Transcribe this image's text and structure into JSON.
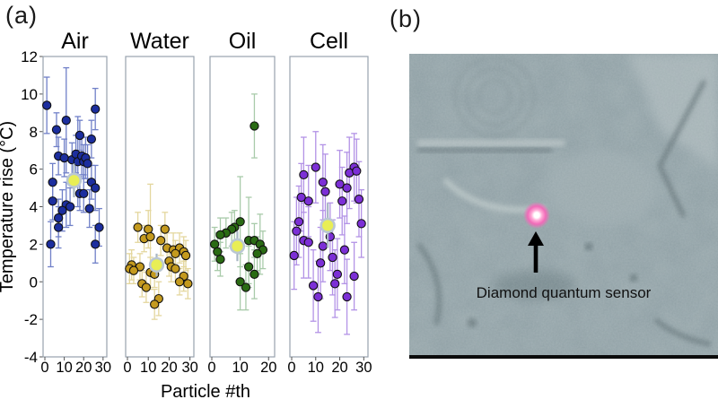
{
  "figure": {
    "panel_a_label": "(a)",
    "panel_b_label": "(b)"
  },
  "chart_data": {
    "type": "scatter",
    "title": "",
    "xlabel": "Particle #th",
    "ylabel": "Temperature rise (°C)",
    "ylim": [
      -4,
      12
    ],
    "yticks": [
      12,
      10,
      8,
      6,
      4,
      2,
      0,
      -2,
      -4
    ],
    "grid": false,
    "legend": "none",
    "box_color": "#98a2ae",
    "mean_marker": {
      "fill": "#e8ee55",
      "ring": "#bac7d3",
      "bar": "#a8b6c4"
    },
    "panels": [
      {
        "title": "Air",
        "xticks": [
          0,
          10,
          20,
          30
        ],
        "xmax": 31,
        "point_color": "#1c2e9e",
        "error_color": "#7080c8",
        "mean": [
          15,
          5.4,
          0.9
        ],
        "points": [
          [
            1,
            9.4,
            1.5
          ],
          [
            6,
            8.1,
            0.9
          ],
          [
            11,
            8.6,
            2.8
          ],
          [
            26,
            9.2,
            1.1
          ],
          [
            18,
            7.8,
            0.8
          ],
          [
            24,
            7.6,
            1.0
          ],
          [
            7,
            6.7,
            1.0
          ],
          [
            10,
            6.6,
            1.0
          ],
          [
            14,
            6.5,
            0.9
          ],
          [
            16,
            6.8,
            1.0
          ],
          [
            17,
            6.4,
            2.4
          ],
          [
            19,
            6.7,
            1.0
          ],
          [
            20,
            6.4,
            0.9
          ],
          [
            21,
            6.6,
            1.1
          ],
          [
            22,
            6.3,
            1.0
          ],
          [
            4,
            5.3,
            1.0
          ],
          [
            24,
            5.3,
            0.9
          ],
          [
            26,
            5.0,
            1.2
          ],
          [
            18,
            4.7,
            0.9
          ],
          [
            20,
            4.7,
            1.0
          ],
          [
            4,
            4.3,
            1.0
          ],
          [
            11,
            4.1,
            1.2
          ],
          [
            13,
            4.0,
            1.0
          ],
          [
            23,
            3.9,
            1.0
          ],
          [
            9,
            3.8,
            1.1
          ],
          [
            7,
            3.4,
            1.0
          ],
          [
            7,
            2.9,
            1.1
          ],
          [
            28,
            2.9,
            1.0
          ],
          [
            3,
            2.0,
            1.2
          ],
          [
            26,
            2.0,
            1.0
          ]
        ]
      },
      {
        "title": "Water",
        "xticks": [
          0,
          10,
          20,
          30
        ],
        "xmax": 31,
        "point_color": "#c49a1e",
        "error_color": "#e4d79e",
        "mean": [
          14,
          0.9,
          0.6
        ],
        "points": [
          [
            5,
            2.9,
            0.8
          ],
          [
            10,
            2.8,
            1.0
          ],
          [
            18,
            2.8,
            0.9
          ],
          [
            8,
            2.3,
            0.7
          ],
          [
            16,
            2.2,
            0.8
          ],
          [
            11,
            2.4,
            2.8
          ],
          [
            19,
            1.8,
            0.8
          ],
          [
            22,
            1.7,
            0.9
          ],
          [
            25,
            1.8,
            0.8
          ],
          [
            27,
            1.6,
            0.8
          ],
          [
            23,
            1.5,
            0.7
          ],
          [
            28,
            1.4,
            0.8
          ],
          [
            20,
            1.1,
            0.8
          ],
          [
            2,
            0.9,
            0.8
          ],
          [
            6,
            0.8,
            0.7
          ],
          [
            1,
            0.7,
            0.8
          ],
          [
            3,
            0.6,
            0.7
          ],
          [
            11,
            0.5,
            0.8
          ],
          [
            13,
            0.4,
            0.7
          ],
          [
            21,
            0.8,
            0.8
          ],
          [
            23,
            0.7,
            0.7
          ],
          [
            27,
            0.3,
            0.8
          ],
          [
            25,
            0.0,
            0.7
          ],
          [
            29,
            -0.1,
            0.8
          ],
          [
            7,
            -0.1,
            0.7
          ],
          [
            9,
            -0.3,
            0.8
          ],
          [
            15,
            -0.9,
            0.9
          ],
          [
            13,
            -1.2,
            0.8
          ]
        ]
      },
      {
        "title": "Oil",
        "xticks": [
          0,
          10,
          20
        ],
        "xmax": 21.5,
        "point_color": "#2a6b14",
        "error_color": "#a9cbaa",
        "mean": [
          9,
          1.9,
          0.8
        ],
        "points": [
          [
            15,
            8.3,
            1.7
          ],
          [
            10,
            3.2,
            2.4
          ],
          [
            8,
            2.9,
            0.9
          ],
          [
            7,
            2.8,
            0.9
          ],
          [
            5,
            2.6,
            0.8
          ],
          [
            3,
            2.5,
            0.9
          ],
          [
            1,
            2.0,
            0.9
          ],
          [
            2,
            1.6,
            1.0
          ],
          [
            3,
            1.2,
            0.9
          ],
          [
            13,
            2.2,
            2.3
          ],
          [
            15,
            2.2,
            0.9
          ],
          [
            17,
            2.0,
            1.6
          ],
          [
            18,
            1.7,
            1.0
          ],
          [
            16,
            1.5,
            0.9
          ],
          [
            13,
            0.8,
            1.1
          ],
          [
            15,
            0.4,
            1.3
          ],
          [
            10,
            0.0,
            1.5
          ],
          [
            12,
            -0.3,
            1.2
          ]
        ]
      },
      {
        "title": "Cell",
        "xticks": [
          0,
          10,
          20,
          30
        ],
        "xmax": 31,
        "point_color": "#7c2fd6",
        "error_color": "#b393e6",
        "mean": [
          15,
          3.0,
          1.2
        ],
        "points": [
          [
            10,
            6.1,
            1.9
          ],
          [
            5,
            5.7,
            2.0
          ],
          [
            26,
            6.1,
            1.8
          ],
          [
            24,
            5.8,
            1.9
          ],
          [
            27,
            5.9,
            1.7
          ],
          [
            13,
            5.3,
            2.0
          ],
          [
            20,
            5.2,
            1.8
          ],
          [
            23,
            5.0,
            1.9
          ],
          [
            14,
            4.8,
            2.0
          ],
          [
            4,
            4.5,
            1.8
          ],
          [
            7,
            4.3,
            1.9
          ],
          [
            21,
            4.3,
            1.8
          ],
          [
            28,
            4.4,
            2.0
          ],
          [
            3,
            3.2,
            1.9
          ],
          [
            29,
            3.1,
            1.8
          ],
          [
            2,
            2.7,
            1.8
          ],
          [
            5,
            2.2,
            2.0
          ],
          [
            7,
            2.1,
            1.9
          ],
          [
            16,
            2.4,
            1.8
          ],
          [
            13,
            1.9,
            1.9
          ],
          [
            22,
            1.7,
            1.8
          ],
          [
            1,
            1.4,
            1.8
          ],
          [
            17,
            1.3,
            2.0
          ],
          [
            12,
            1.0,
            1.9
          ],
          [
            19,
            0.4,
            1.9
          ],
          [
            26,
            0.3,
            1.8
          ],
          [
            9,
            -0.2,
            1.9
          ],
          [
            18,
            -0.1,
            1.8
          ],
          [
            23,
            -0.8,
            2.0
          ],
          [
            11,
            -0.8,
            1.9
          ]
        ]
      }
    ]
  },
  "panel_b": {
    "annotation": "Diamond quantum sensor",
    "sensor_color": "#f06ab8"
  }
}
